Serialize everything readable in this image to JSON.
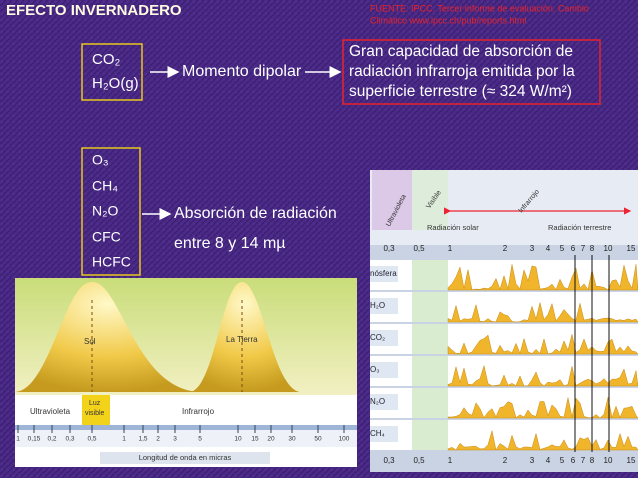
{
  "header": {
    "title": "EFECTO INVERNADERO",
    "source": [
      "FUENTE: IPCC. Tercer informe de evaluación. Cambio",
      "Climático www.ipcc.ch/pub/reports.html"
    ]
  },
  "group1": {
    "gases": [
      "CO₂",
      "H₂O(g)"
    ],
    "effect": "Momento dipolar",
    "description": [
      "Gran capacidad de absorción de",
      "radiación infrarroja emitida por la",
      "superficie terrestre (≈ 324 W/m²)"
    ]
  },
  "group2": {
    "gases": [
      "O₃",
      "CH₄",
      "N₂O",
      "CFC",
      "HCFC"
    ],
    "effect": [
      "Absorción de radiación",
      "entre 8 y 14 mµ"
    ]
  },
  "figure_left": {
    "peaks": [
      "Sol",
      "La Tierra"
    ],
    "bands": [
      "Ultravioleta",
      "Luz",
      "visible",
      "Infrarrojo"
    ],
    "ticks": [
      "1",
      "0,15",
      "0,2",
      "0,3",
      "0,5",
      "1",
      "1,5",
      "2",
      "3",
      "5",
      "10",
      "15",
      "20",
      "30",
      "50",
      "100"
    ],
    "axis_label": "Longitud de onda en micras"
  },
  "figure_right": {
    "bands": [
      "Ultravioleta",
      "Visible",
      "Infrarrojo"
    ],
    "radiation": [
      "Radiación solar",
      "Radiación terrestre"
    ],
    "ticks": [
      "0,3",
      "0,5",
      "1",
      "2",
      "3",
      "4",
      "5",
      "6",
      "7",
      "8",
      "10",
      "15"
    ],
    "rows": [
      "nósfera",
      "H₂O",
      "CO₂",
      "O₃",
      "N₂O",
      "CH₄"
    ]
  }
}
